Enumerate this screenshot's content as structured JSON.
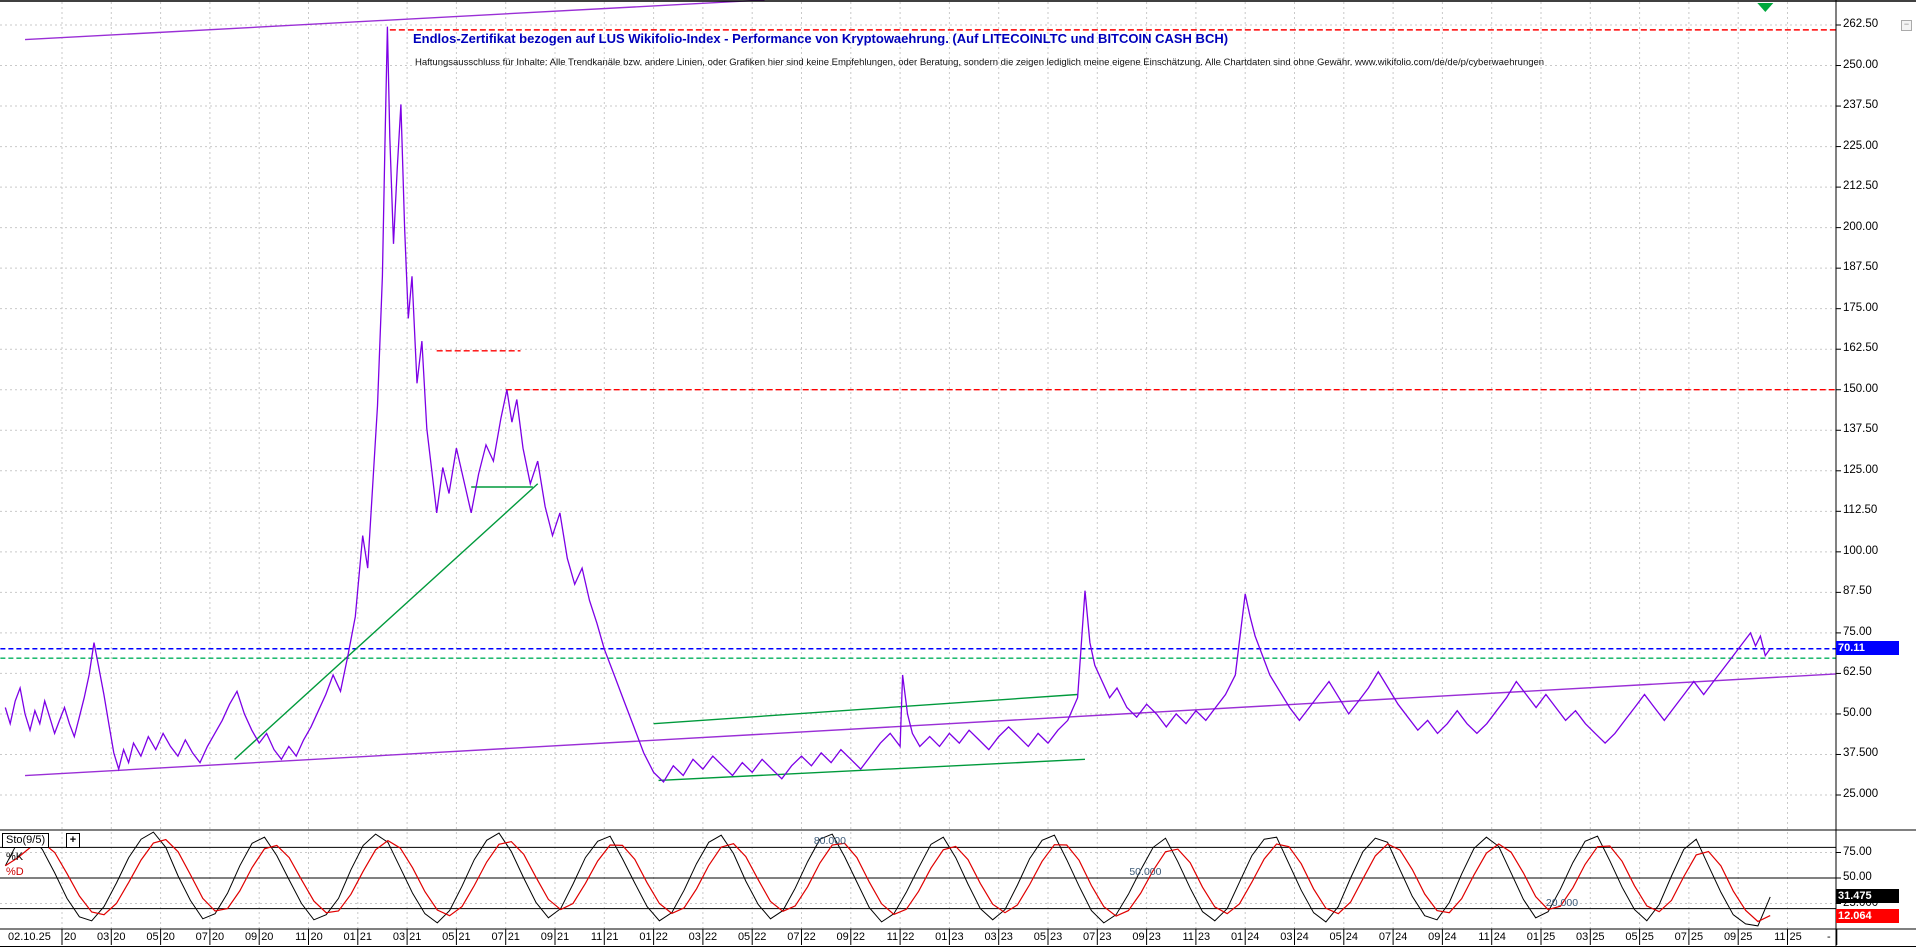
{
  "header": {
    "title": "Endlos-Zertifikat bezogen auf LUS Wikifolio-Index - Performance von Kryptowaehrung. (Auf LITECOINLTC und BITCOIN CASH BCH)",
    "disclaimer": "Haftungsausschluss für Inhalte: Alle Trendkanäle bzw. andere Linien, oder Grafiken hier sind keine Empfehlungen, oder Beratung, sondern die zeigen lediglich meine eigene Einschätzung. Alle Chartdaten sind ohne Gewähr. www.wikifolio.com/de/de/p/cyberwaehrungen"
  },
  "window": {
    "minimize_label": "−"
  },
  "colors": {
    "price": "#7d00e6",
    "channel": "#9a2fd6",
    "green_trend": "#009a3c",
    "green_dashed": "#00b05c",
    "red_line": "#ff0000",
    "blue_line": "#0000ff",
    "grid": "#c9c9c9",
    "k_line": "#000000",
    "d_line": "#e00000",
    "marker_green": "#00a83c",
    "price_tag_bg": "#0000ff",
    "k_tag_bg": "#000000",
    "d_tag_bg": "#ff0000"
  },
  "right_axis": {
    "main_ticks": [
      {
        "label": "262.50",
        "value": 262.5
      },
      {
        "label": "250.00",
        "value": 250
      },
      {
        "label": "237.50",
        "value": 237.5
      },
      {
        "label": "225.00",
        "value": 225
      },
      {
        "label": "212.50",
        "value": 212.5
      },
      {
        "label": "200.00",
        "value": 200
      },
      {
        "label": "187.50",
        "value": 187.5
      },
      {
        "label": "175.00",
        "value": 175
      },
      {
        "label": "162.50",
        "value": 162.5
      },
      {
        "label": "150.00",
        "value": 150
      },
      {
        "label": "137.50",
        "value": 137.5
      },
      {
        "label": "125.00",
        "value": 125
      },
      {
        "label": "112.50",
        "value": 112.5
      },
      {
        "label": "100.00",
        "value": 100
      },
      {
        "label": "87.50",
        "value": 87.5
      },
      {
        "label": "75.00",
        "value": 75
      },
      {
        "label": "62.50",
        "value": 62.5
      },
      {
        "label": "50.00",
        "value": 50
      },
      {
        "label": "37.500",
        "value": 37.5
      },
      {
        "label": "25.000",
        "value": 25
      }
    ],
    "stoch_ticks": [
      {
        "label": "75.00",
        "value": 75
      },
      {
        "label": "50.00",
        "value": 50
      },
      {
        "label": "25.000",
        "value": 25
      }
    ],
    "price_tag": {
      "label": "70.11",
      "value": 70.11
    },
    "k_tag": {
      "label": "31.475",
      "value": 31.475
    },
    "d_tag": {
      "label": "12.064",
      "value": 12.064
    }
  },
  "x_axis": {
    "start_label": "02.10.25",
    "end_label": "-",
    "ticks": [
      {
        "m": 0,
        "mo": "",
        "yr": "20"
      },
      {
        "m": 2,
        "mo": "03",
        "yr": "20"
      },
      {
        "m": 4,
        "mo": "05",
        "yr": "20"
      },
      {
        "m": 6,
        "mo": "07",
        "yr": "20"
      },
      {
        "m": 8,
        "mo": "09",
        "yr": "20"
      },
      {
        "m": 10,
        "mo": "11",
        "yr": "20"
      },
      {
        "m": 12,
        "mo": "01",
        "yr": "21"
      },
      {
        "m": 14,
        "mo": "03",
        "yr": "21"
      },
      {
        "m": 16,
        "mo": "05",
        "yr": "21"
      },
      {
        "m": 18,
        "mo": "07",
        "yr": "21"
      },
      {
        "m": 20,
        "mo": "09",
        "yr": "21"
      },
      {
        "m": 22,
        "mo": "11",
        "yr": "21"
      },
      {
        "m": 24,
        "mo": "01",
        "yr": "22"
      },
      {
        "m": 26,
        "mo": "03",
        "yr": "22"
      },
      {
        "m": 28,
        "mo": "05",
        "yr": "22"
      },
      {
        "m": 30,
        "mo": "07",
        "yr": "22"
      },
      {
        "m": 32,
        "mo": "09",
        "yr": "22"
      },
      {
        "m": 34,
        "mo": "11",
        "yr": "22"
      },
      {
        "m": 36,
        "mo": "01",
        "yr": "23"
      },
      {
        "m": 38,
        "mo": "03",
        "yr": "23"
      },
      {
        "m": 40,
        "mo": "05",
        "yr": "23"
      },
      {
        "m": 42,
        "mo": "07",
        "yr": "23"
      },
      {
        "m": 44,
        "mo": "09",
        "yr": "23"
      },
      {
        "m": 46,
        "mo": "11",
        "yr": "23"
      },
      {
        "m": 48,
        "mo": "01",
        "yr": "24"
      },
      {
        "m": 50,
        "mo": "03",
        "yr": "24"
      },
      {
        "m": 52,
        "mo": "05",
        "yr": "24"
      },
      {
        "m": 54,
        "mo": "07",
        "yr": "24"
      },
      {
        "m": 56,
        "mo": "09",
        "yr": "24"
      },
      {
        "m": 58,
        "mo": "11",
        "yr": "24"
      },
      {
        "m": 60,
        "mo": "01",
        "yr": "25"
      },
      {
        "m": 62,
        "mo": "03",
        "yr": "25"
      },
      {
        "m": 64,
        "mo": "05",
        "yr": "25"
      },
      {
        "m": 66,
        "mo": "07",
        "yr": "25"
      },
      {
        "m": 68,
        "mo": "09",
        "yr": "25"
      },
      {
        "m": 70,
        "mo": "11",
        "yr": "25"
      }
    ]
  },
  "indicator": {
    "name": "Sto(9/5)",
    "add_button": "+",
    "k_label": "%K",
    "d_label": "%D",
    "levels": [
      {
        "label": "80.000",
        "value": 80,
        "x_m": 30.5
      },
      {
        "label": "50.000",
        "value": 50,
        "x_m": 43.3
      },
      {
        "label": "20.000",
        "value": 20,
        "x_m": 60.2
      }
    ]
  },
  "chart_data": {
    "type": "line",
    "title": "Endlos-Zertifikat bezogen auf LUS Wikifolio-Index - Performance von Kryptowaehrung. (Auf LITECOINLTC und BITCOIN CASH BCH)",
    "x_unit": "months_since_2020_01",
    "x_range": [
      -2.5,
      72.5
    ],
    "ylim_main": [
      25,
      262.5
    ],
    "ylim_stoch": [
      0,
      100
    ],
    "current_price": 70.11,
    "grid": true,
    "price_series": [
      [
        -2.3,
        52
      ],
      [
        -2.1,
        47
      ],
      [
        -1.9,
        54
      ],
      [
        -1.7,
        58
      ],
      [
        -1.5,
        50
      ],
      [
        -1.3,
        45
      ],
      [
        -1.1,
        51
      ],
      [
        -0.9,
        47
      ],
      [
        -0.7,
        54
      ],
      [
        -0.5,
        49
      ],
      [
        -0.3,
        44
      ],
      [
        -0.1,
        48
      ],
      [
        0.1,
        52
      ],
      [
        0.3,
        47
      ],
      [
        0.5,
        43
      ],
      [
        0.7,
        49
      ],
      [
        0.9,
        55
      ],
      [
        1.1,
        62
      ],
      [
        1.3,
        72
      ],
      [
        1.5,
        64
      ],
      [
        1.7,
        56
      ],
      [
        1.9,
        47
      ],
      [
        2.1,
        38
      ],
      [
        2.3,
        33
      ],
      [
        2.5,
        39
      ],
      [
        2.7,
        35
      ],
      [
        2.9,
        41
      ],
      [
        3.2,
        37
      ],
      [
        3.5,
        43
      ],
      [
        3.8,
        39
      ],
      [
        4.1,
        44
      ],
      [
        4.4,
        40
      ],
      [
        4.7,
        37
      ],
      [
        5,
        42
      ],
      [
        5.3,
        38
      ],
      [
        5.6,
        35
      ],
      [
        5.9,
        40
      ],
      [
        6.2,
        44
      ],
      [
        6.5,
        48
      ],
      [
        6.8,
        53
      ],
      [
        7.1,
        57
      ],
      [
        7.4,
        50
      ],
      [
        7.7,
        45
      ],
      [
        8,
        41
      ],
      [
        8.3,
        44
      ],
      [
        8.6,
        39
      ],
      [
        8.9,
        36
      ],
      [
        9.2,
        40
      ],
      [
        9.5,
        37
      ],
      [
        9.8,
        42
      ],
      [
        10.1,
        46
      ],
      [
        10.4,
        51
      ],
      [
        10.7,
        56
      ],
      [
        11,
        62
      ],
      [
        11.3,
        57
      ],
      [
        11.6,
        68
      ],
      [
        11.9,
        80
      ],
      [
        12.2,
        105
      ],
      [
        12.4,
        95
      ],
      [
        12.6,
        120
      ],
      [
        12.8,
        145
      ],
      [
        13,
        185
      ],
      [
        13.1,
        225
      ],
      [
        13.2,
        262
      ],
      [
        13.3,
        228
      ],
      [
        13.45,
        195
      ],
      [
        13.6,
        218
      ],
      [
        13.75,
        238
      ],
      [
        13.9,
        200
      ],
      [
        14.05,
        172
      ],
      [
        14.2,
        185
      ],
      [
        14.4,
        152
      ],
      [
        14.6,
        165
      ],
      [
        14.8,
        138
      ],
      [
        15,
        125
      ],
      [
        15.2,
        112
      ],
      [
        15.45,
        126
      ],
      [
        15.7,
        118
      ],
      [
        16,
        132
      ],
      [
        16.3,
        122
      ],
      [
        16.6,
        112
      ],
      [
        16.9,
        124
      ],
      [
        17.2,
        133
      ],
      [
        17.5,
        128
      ],
      [
        17.8,
        141
      ],
      [
        18.05,
        150
      ],
      [
        18.25,
        140
      ],
      [
        18.45,
        147
      ],
      [
        18.7,
        132
      ],
      [
        19,
        121
      ],
      [
        19.3,
        128
      ],
      [
        19.6,
        114
      ],
      [
        19.9,
        105
      ],
      [
        20.2,
        112
      ],
      [
        20.5,
        98
      ],
      [
        20.8,
        90
      ],
      [
        21.1,
        95
      ],
      [
        21.4,
        85
      ],
      [
        21.7,
        78
      ],
      [
        22,
        70
      ],
      [
        22.4,
        62
      ],
      [
        22.8,
        54
      ],
      [
        23.2,
        46
      ],
      [
        23.6,
        38
      ],
      [
        24,
        32
      ],
      [
        24.4,
        29
      ],
      [
        24.8,
        34
      ],
      [
        25.2,
        31
      ],
      [
        25.6,
        36
      ],
      [
        26,
        33
      ],
      [
        26.4,
        37
      ],
      [
        26.8,
        34
      ],
      [
        27.2,
        31
      ],
      [
        27.6,
        35
      ],
      [
        28,
        32
      ],
      [
        28.4,
        36
      ],
      [
        28.8,
        33
      ],
      [
        29.2,
        30
      ],
      [
        29.6,
        34
      ],
      [
        30,
        37
      ],
      [
        30.4,
        34
      ],
      [
        30.8,
        38
      ],
      [
        31.2,
        35
      ],
      [
        31.6,
        39
      ],
      [
        32,
        36
      ],
      [
        32.4,
        33
      ],
      [
        32.8,
        37
      ],
      [
        33.2,
        41
      ],
      [
        33.6,
        44
      ],
      [
        34,
        40
      ],
      [
        34.1,
        62
      ],
      [
        34.3,
        50
      ],
      [
        34.5,
        44
      ],
      [
        34.8,
        40
      ],
      [
        35.2,
        43
      ],
      [
        35.6,
        40
      ],
      [
        36,
        44
      ],
      [
        36.4,
        41
      ],
      [
        36.8,
        45
      ],
      [
        37.2,
        42
      ],
      [
        37.6,
        39
      ],
      [
        38,
        43
      ],
      [
        38.4,
        46
      ],
      [
        38.8,
        43
      ],
      [
        39.2,
        40
      ],
      [
        39.6,
        44
      ],
      [
        40,
        41
      ],
      [
        40.4,
        45
      ],
      [
        40.8,
        48
      ],
      [
        41.2,
        55
      ],
      [
        41.5,
        88
      ],
      [
        41.7,
        72
      ],
      [
        41.9,
        65
      ],
      [
        42.2,
        60
      ],
      [
        42.5,
        55
      ],
      [
        42.8,
        58
      ],
      [
        43.2,
        52
      ],
      [
        43.6,
        49
      ],
      [
        44,
        53
      ],
      [
        44.4,
        50
      ],
      [
        44.8,
        46
      ],
      [
        45.2,
        50
      ],
      [
        45.6,
        47
      ],
      [
        46,
        51
      ],
      [
        46.4,
        48
      ],
      [
        46.8,
        52
      ],
      [
        47.2,
        56
      ],
      [
        47.6,
        62
      ],
      [
        48,
        87
      ],
      [
        48.2,
        80
      ],
      [
        48.4,
        74
      ],
      [
        48.7,
        68
      ],
      [
        49,
        62
      ],
      [
        49.4,
        57
      ],
      [
        49.8,
        52
      ],
      [
        50.2,
        48
      ],
      [
        50.6,
        52
      ],
      [
        51,
        56
      ],
      [
        51.4,
        60
      ],
      [
        51.8,
        55
      ],
      [
        52.2,
        50
      ],
      [
        52.6,
        54
      ],
      [
        53,
        58
      ],
      [
        53.4,
        63
      ],
      [
        53.8,
        58
      ],
      [
        54.2,
        53
      ],
      [
        54.6,
        49
      ],
      [
        55,
        45
      ],
      [
        55.4,
        48
      ],
      [
        55.8,
        44
      ],
      [
        56.2,
        47
      ],
      [
        56.6,
        51
      ],
      [
        57,
        47
      ],
      [
        57.4,
        44
      ],
      [
        57.8,
        47
      ],
      [
        58.2,
        51
      ],
      [
        58.6,
        55
      ],
      [
        59,
        60
      ],
      [
        59.4,
        56
      ],
      [
        59.8,
        52
      ],
      [
        60.2,
        56
      ],
      [
        60.6,
        52
      ],
      [
        61,
        48
      ],
      [
        61.4,
        51
      ],
      [
        61.8,
        47
      ],
      [
        62.2,
        44
      ],
      [
        62.6,
        41
      ],
      [
        63,
        44
      ],
      [
        63.4,
        48
      ],
      [
        63.8,
        52
      ],
      [
        64.2,
        56
      ],
      [
        64.6,
        52
      ],
      [
        65,
        48
      ],
      [
        65.4,
        52
      ],
      [
        65.8,
        56
      ],
      [
        66.2,
        60
      ],
      [
        66.6,
        56
      ],
      [
        67,
        60
      ],
      [
        67.4,
        64
      ],
      [
        67.8,
        68
      ],
      [
        68.2,
        72
      ],
      [
        68.5,
        75
      ],
      [
        68.7,
        71
      ],
      [
        68.9,
        74
      ],
      [
        69.1,
        68
      ],
      [
        69.3,
        70.11
      ]
    ],
    "trendlines": [
      {
        "name": "support-channel-violet",
        "color_key": "channel",
        "dash": null,
        "p1": [
          -1.5,
          31
        ],
        "p2": [
          73.5,
          63
        ]
      },
      {
        "name": "upper-channel-violet",
        "color_key": "channel",
        "dash": null,
        "p1": [
          -1.5,
          258
        ],
        "p2": [
          28.5,
          271
        ]
      },
      {
        "name": "green-uptrend-2020-21",
        "color_key": "green_trend",
        "dash": null,
        "p1": [
          7,
          36
        ],
        "p2": [
          19.3,
          121
        ]
      },
      {
        "name": "green-short-resistance",
        "color_key": "green_trend",
        "dash": null,
        "p1": [
          16.6,
          120
        ],
        "p2": [
          19.1,
          120
        ]
      },
      {
        "name": "green-mid-channel-upper",
        "color_key": "green_trend",
        "dash": null,
        "p1": [
          24,
          47
        ],
        "p2": [
          41.2,
          56
        ]
      },
      {
        "name": "green-mid-channel-lower",
        "color_key": "green_trend",
        "dash": null,
        "p1": [
          24.2,
          29.5
        ],
        "p2": [
          41.5,
          36
        ]
      }
    ],
    "hlines": [
      {
        "name": "red-resistance-top",
        "value": 261,
        "m1": 13.3,
        "m2": 72,
        "color_key": "red_line",
        "dash": "6 3"
      },
      {
        "name": "red-resistance-162",
        "value": 162,
        "m1": 15.2,
        "m2": 18.6,
        "color_key": "red_line",
        "dash": "6 3"
      },
      {
        "name": "red-resistance-150",
        "value": 150,
        "m1": 18,
        "m2": 72,
        "color_key": "red_line",
        "dash": "6 3"
      },
      {
        "name": "blue-current-price",
        "value": 70.11,
        "m1": -2.5,
        "m2": 72,
        "color_key": "blue_line",
        "dash": "5 3"
      },
      {
        "name": "green-level",
        "value": 67.2,
        "m1": -2.5,
        "m2": 72,
        "color_key": "green_dashed",
        "dash": "5 3"
      }
    ],
    "event_marker": {
      "shape": "triangle-down",
      "color_key": "marker_green",
      "m": 69.1
    },
    "stochastic": {
      "name": "Sto(9/5)",
      "levels": [
        80,
        50,
        20
      ],
      "grid_levels": [
        75,
        50,
        25
      ],
      "current_k": 31.475,
      "current_d": 12.064,
      "k": [
        62,
        85,
        92,
        78,
        55,
        30,
        12,
        8,
        22,
        45,
        70,
        88,
        95,
        80,
        52,
        28,
        10,
        15,
        35,
        62,
        84,
        90,
        72,
        48,
        25,
        9,
        14,
        30,
        58,
        82,
        93,
        85,
        60,
        35,
        15,
        6,
        18,
        42,
        68,
        87,
        94,
        76,
        50,
        26,
        11,
        20,
        44,
        70,
        86,
        91,
        69,
        45,
        22,
        8,
        16,
        38,
        64,
        85,
        92,
        74,
        47,
        24,
        10,
        18,
        40,
        66,
        88,
        93,
        71,
        46,
        21,
        7,
        15,
        36,
        60,
        83,
        90,
        70,
        44,
        20,
        9,
        19,
        43,
        69,
        87,
        92,
        68,
        42,
        18,
        6,
        14,
        34,
        58,
        80,
        89,
        66,
        40,
        17,
        8,
        20,
        46,
        72,
        88,
        90,
        64,
        38,
        16,
        7,
        22,
        50,
        76,
        89,
        85,
        58,
        32,
        13,
        9,
        26,
        54,
        79,
        90,
        81,
        55,
        29,
        11,
        17,
        39,
        65,
        86,
        91,
        67,
        41,
        19,
        8,
        24,
        52,
        78,
        88,
        62,
        36,
        14,
        5,
        3,
        31.475
      ]
    }
  }
}
